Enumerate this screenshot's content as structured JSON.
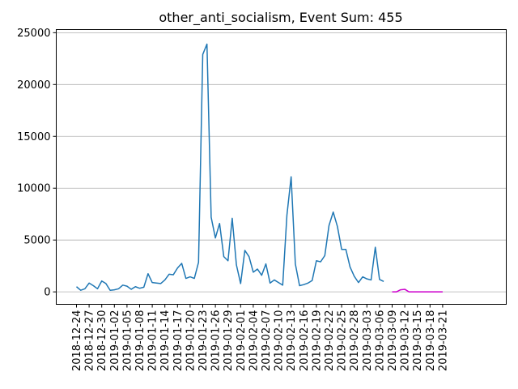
{
  "chart_data": {
    "type": "line",
    "title": "other_anti_socialism, Event Sum: 455",
    "xlabel": "",
    "ylabel": "",
    "ylim": [
      -1200,
      25300
    ],
    "yticks": [
      0,
      5000,
      10000,
      15000,
      20000,
      25000
    ],
    "ytick_labels": [
      "0",
      "5000",
      "10000",
      "15000",
      "20000",
      "25000"
    ],
    "xtick_labels": [
      "2018-12-24",
      "2018-12-27",
      "2018-12-30",
      "2019-01-02",
      "2019-01-05",
      "2019-01-08",
      "2019-01-11",
      "2019-01-14",
      "2019-01-17",
      "2019-01-20",
      "2019-01-23",
      "2019-01-26",
      "2019-01-29",
      "2019-02-01",
      "2019-02-04",
      "2019-02-07",
      "2019-02-10",
      "2019-02-13",
      "2019-02-16",
      "2019-02-19",
      "2019-02-22",
      "2019-02-25",
      "2019-02-28",
      "2019-03-03",
      "2019-03-06",
      "2019-03-09",
      "2019-03-12",
      "2019-03-15",
      "2019-03-18",
      "2019-03-21"
    ],
    "grid": "horizontal",
    "series": [
      {
        "color": "#1f77b4",
        "x": [
          "2018-12-24",
          "2018-12-25",
          "2018-12-26",
          "2018-12-27",
          "2018-12-28",
          "2018-12-29",
          "2018-12-30",
          "2018-12-31",
          "2019-01-01",
          "2019-01-02",
          "2019-01-03",
          "2019-01-04",
          "2019-01-05",
          "2019-01-06",
          "2019-01-07",
          "2019-01-08",
          "2019-01-09",
          "2019-01-10",
          "2019-01-11",
          "2019-01-12",
          "2019-01-13",
          "2019-01-14",
          "2019-01-15",
          "2019-01-16",
          "2019-01-17",
          "2019-01-18",
          "2019-01-19",
          "2019-01-20",
          "2019-01-21",
          "2019-01-22",
          "2019-01-23",
          "2019-01-24",
          "2019-01-25",
          "2019-01-26",
          "2019-01-27",
          "2019-01-28",
          "2019-01-29",
          "2019-01-30",
          "2019-01-31",
          "2019-02-01",
          "2019-02-02",
          "2019-02-03",
          "2019-02-04",
          "2019-02-05",
          "2019-02-06",
          "2019-02-07",
          "2019-02-08",
          "2019-02-09",
          "2019-02-10",
          "2019-02-11",
          "2019-02-12",
          "2019-02-13",
          "2019-02-14",
          "2019-02-15",
          "2019-02-16",
          "2019-02-17",
          "2019-02-18",
          "2019-02-19",
          "2019-02-20",
          "2019-02-21",
          "2019-02-22",
          "2019-02-23",
          "2019-02-24",
          "2019-02-25",
          "2019-02-26",
          "2019-02-27",
          "2019-02-28",
          "2019-03-01",
          "2019-03-02",
          "2019-03-03",
          "2019-03-04",
          "2019-03-05",
          "2019-03-06"
        ],
        "values": [
          500,
          150,
          300,
          850,
          600,
          300,
          1050,
          800,
          150,
          200,
          300,
          650,
          550,
          250,
          500,
          350,
          450,
          1750,
          900,
          850,
          800,
          1150,
          1700,
          1650,
          2300,
          2750,
          1300,
          1450,
          1300,
          2850,
          22900,
          23900,
          7200,
          5200,
          6600,
          3400,
          3000,
          7100,
          2600,
          800,
          4000,
          3400,
          1900,
          2200,
          1600,
          2700,
          850,
          1150,
          900,
          650,
          7400,
          11100,
          2700,
          600,
          700,
          850,
          1100,
          3000,
          2900,
          3500,
          6400,
          7700,
          6300,
          4100,
          4100,
          2400,
          1500,
          900,
          1450,
          1250,
          1150,
          4300,
          1200
        ],
        "tail_x": "2019-03-07",
        "tail_y": 1000
      },
      {
        "color": "#cc00cc",
        "x": [
          "2019-03-09",
          "2019-03-10",
          "2019-03-11",
          "2019-03-12",
          "2019-03-13",
          "2019-03-14",
          "2019-03-15",
          "2019-03-16",
          "2019-03-17",
          "2019-03-18",
          "2019-03-19",
          "2019-03-20",
          "2019-03-21"
        ],
        "values": [
          0,
          0,
          200,
          250,
          0,
          0,
          0,
          0,
          0,
          0,
          0,
          0,
          0
        ]
      }
    ]
  }
}
